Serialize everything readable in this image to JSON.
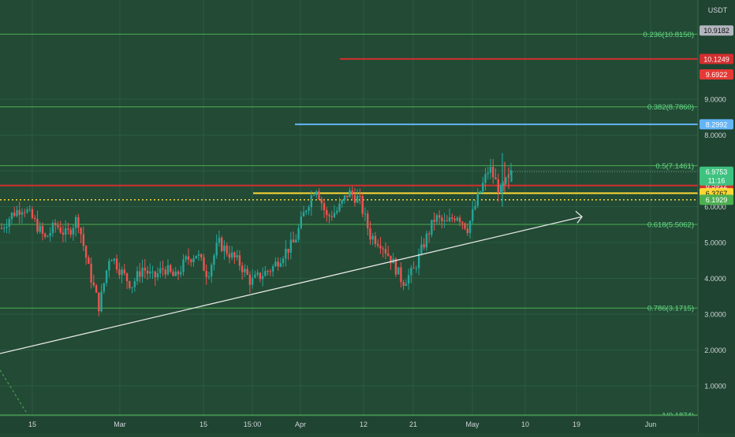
{
  "chart_data": {
    "type": "candlestick",
    "currency": "USDT",
    "price_axis": {
      "min": 0,
      "max": 11.5,
      "ticks": [
        "1.0000",
        "2.0000",
        "3.0000",
        "4.0000",
        "5.0000",
        "6.0000",
        "7.0000",
        "8.0000",
        "9.0000"
      ]
    },
    "time_axis": {
      "labels": [
        "15",
        "Mar",
        "15",
        "15:00",
        "Apr",
        "12",
        "21",
        "May",
        "10",
        "19",
        "Jun"
      ]
    },
    "last_price": {
      "value": "6.9753",
      "countdown": "11:16",
      "color": "#3ec27f"
    },
    "price_tags": [
      {
        "value": "10.9182",
        "price": 10.9182,
        "color": "#b2b5be"
      },
      {
        "value": "10.1249",
        "price": 10.1249,
        "color": "#d32f2f"
      },
      {
        "value": "9.6922",
        "price": 9.6922,
        "color": "#e53935"
      },
      {
        "value": "8.2992",
        "price": 8.2992,
        "color": "#64b5f6"
      },
      {
        "value": "6.5912",
        "price": 6.5912,
        "color": "#d32f2f"
      },
      {
        "value": "6.3767",
        "price": 6.3767,
        "color": "#fdd835"
      },
      {
        "value": "6.1929",
        "price": 6.1929,
        "color": "#4caf50"
      }
    ],
    "fib_levels": [
      {
        "label": "0.236(10.8150)",
        "price": 10.815
      },
      {
        "label": "0.382(8.7860)",
        "price": 8.786
      },
      {
        "label": "0.5(7.1461)",
        "price": 7.1461
      },
      {
        "label": "0.618(5.5062)",
        "price": 5.5062
      },
      {
        "label": "0.786(3.1715)",
        "price": 3.1715
      },
      {
        "label": "1(0.1874)",
        "price": 0.1874
      }
    ],
    "horizontal_lines": [
      {
        "price": 10.1249,
        "color": "#d32f2f",
        "from": "Apr 12"
      },
      {
        "price": 8.2992,
        "color": "#64b5f6",
        "from": "Mar 27"
      },
      {
        "price": 6.5912,
        "color": "#d32f2f",
        "from": "start"
      },
      {
        "price": 6.3767,
        "color": "#fdd835",
        "from": "Mar 22",
        "style": "solid"
      },
      {
        "price": 6.1929,
        "color": "#fdd835",
        "from": "start",
        "style": "dotted"
      }
    ],
    "trendline": {
      "from": {
        "price": 1.9
      },
      "to": {
        "price": 5.72
      },
      "arrow": true
    },
    "price_path": [
      {
        "p": 5.4
      },
      {
        "p": 5.8
      },
      {
        "p": 6.0
      },
      {
        "p": 5.6
      },
      {
        "p": 5.1
      },
      {
        "p": 5.5
      },
      {
        "p": 5.2
      },
      {
        "p": 5.7
      },
      {
        "p": 4.3
      },
      {
        "p": 3.2
      },
      {
        "p": 4.7
      },
      {
        "p": 4.2
      },
      {
        "p": 3.8
      },
      {
        "p": 4.3
      },
      {
        "p": 4.0
      },
      {
        "p": 4.3
      },
      {
        "p": 4.0
      },
      {
        "p": 4.5
      },
      {
        "p": 4.7
      },
      {
        "p": 4.1
      },
      {
        "p": 5.0
      },
      {
        "p": 4.7
      },
      {
        "p": 4.4
      },
      {
        "p": 3.9
      },
      {
        "p": 4.1
      },
      {
        "p": 4.3
      },
      {
        "p": 4.7
      },
      {
        "p": 5.0
      },
      {
        "p": 5.9
      },
      {
        "p": 6.6
      },
      {
        "p": 5.7
      },
      {
        "p": 5.9
      },
      {
        "p": 6.4
      },
      {
        "p": 6.2
      },
      {
        "p": 5.2
      },
      {
        "p": 5.0
      },
      {
        "p": 4.5
      },
      {
        "p": 3.9
      },
      {
        "p": 4.2
      },
      {
        "p": 5.0
      },
      {
        "p": 5.7
      },
      {
        "p": 5.5
      },
      {
        "p": 5.8
      },
      {
        "p": 5.4
      },
      {
        "p": 6.3
      },
      {
        "p": 7.1
      },
      {
        "p": 6.4
      },
      {
        "p": 6.9
      }
    ]
  }
}
